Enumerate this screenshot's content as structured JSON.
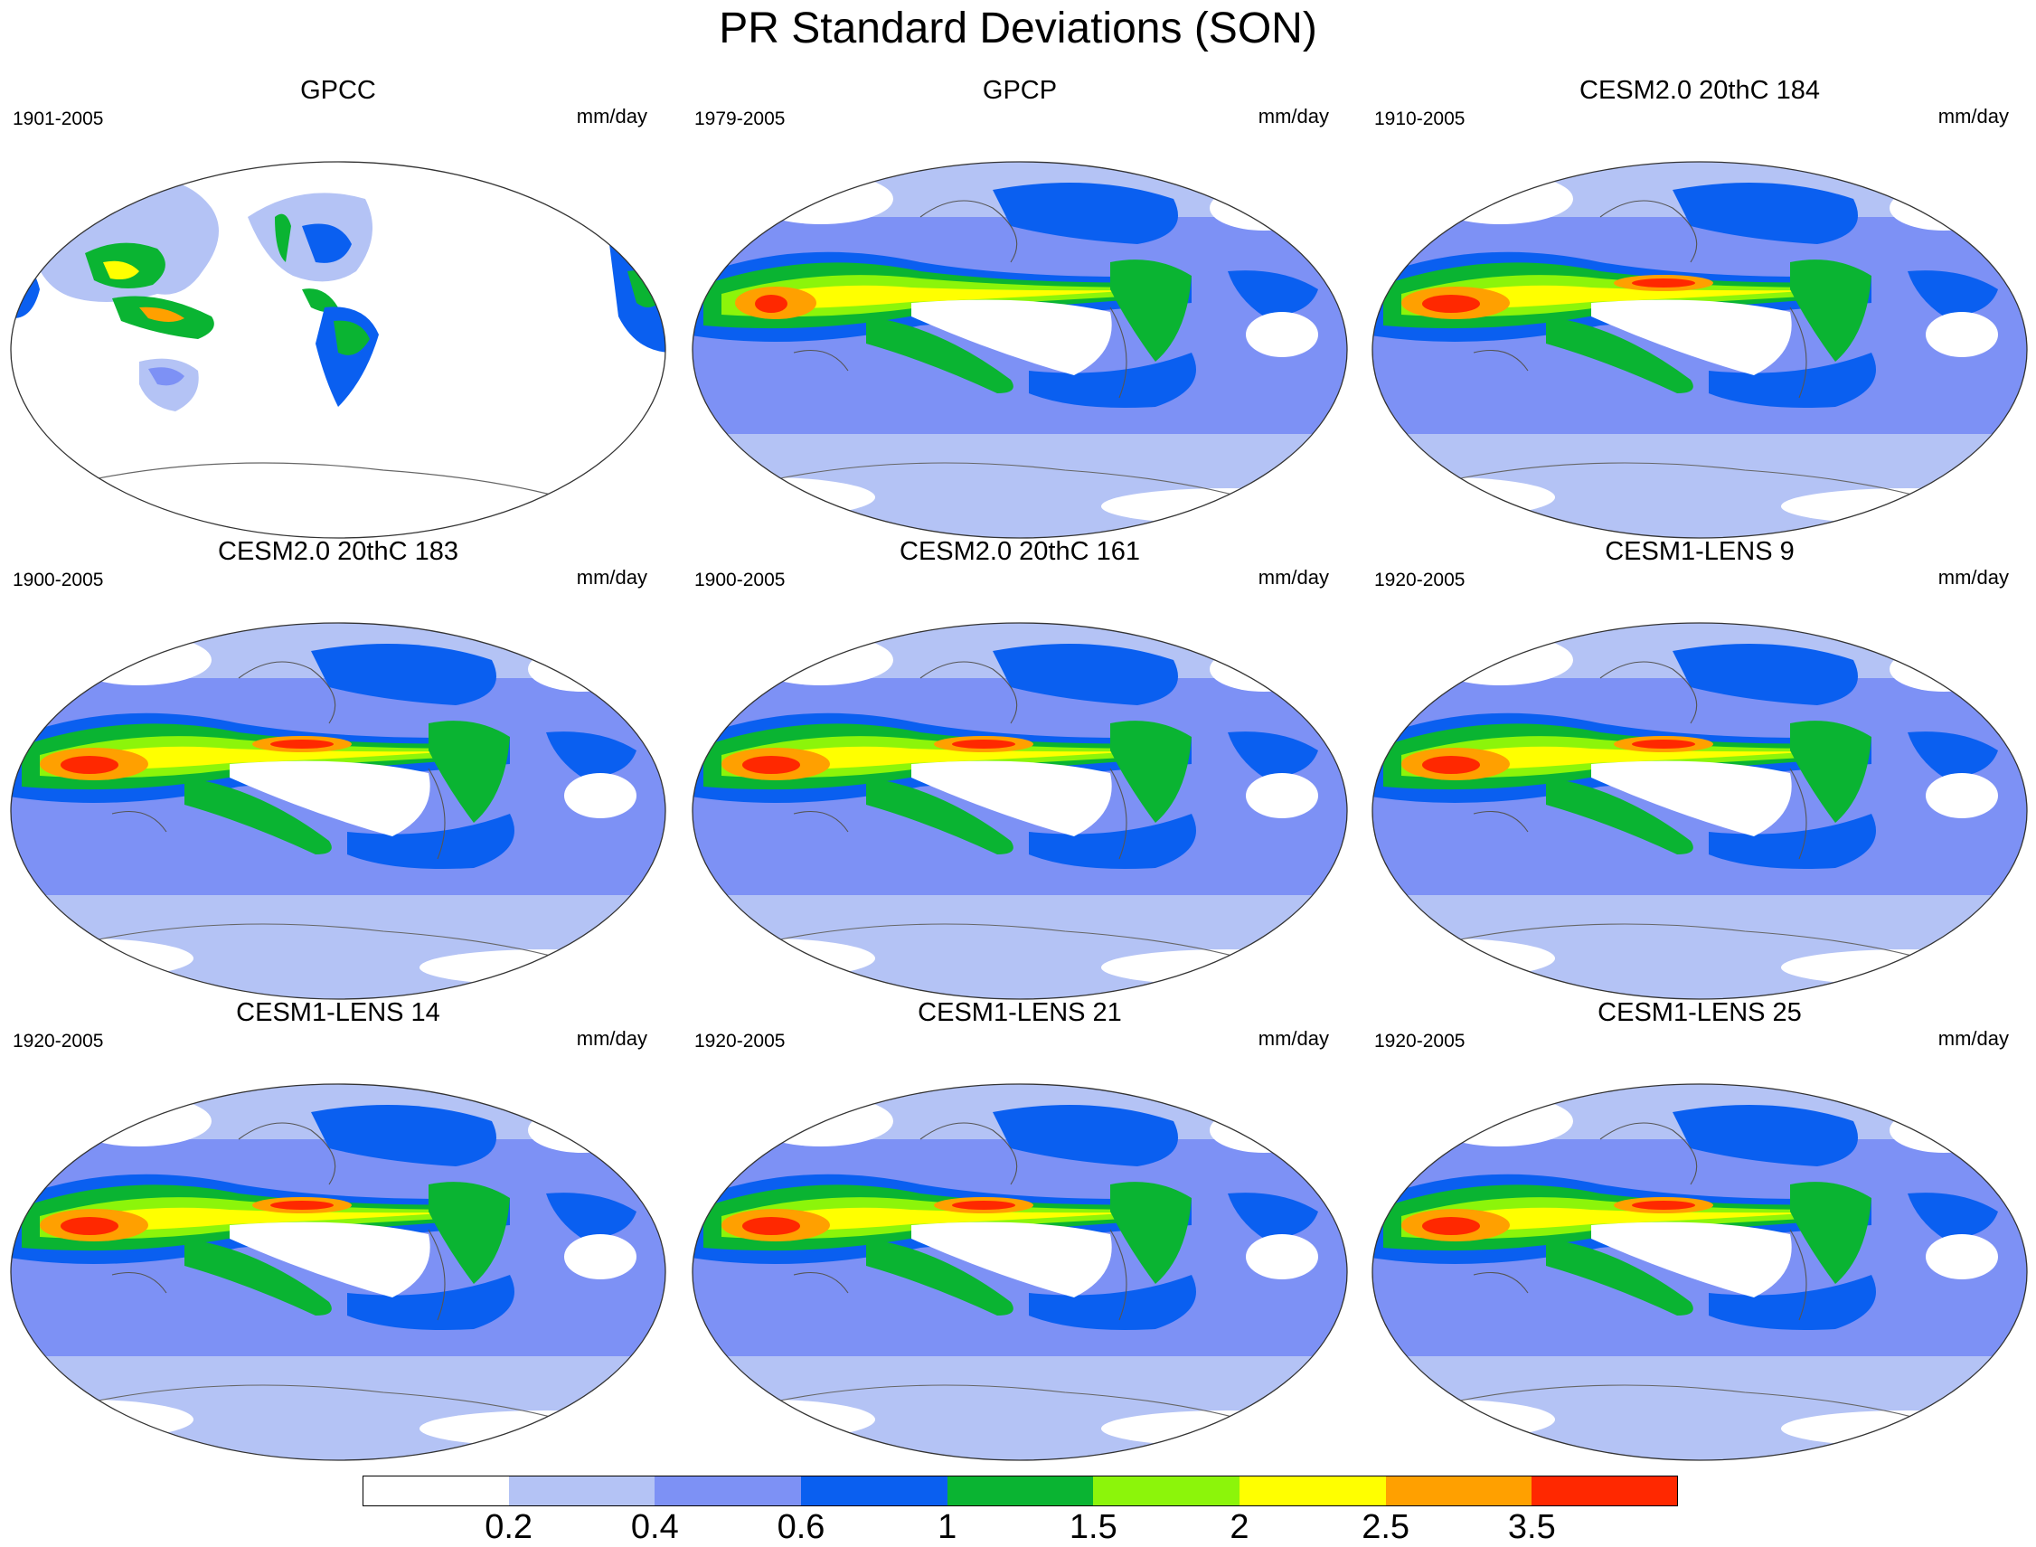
{
  "title": "PR Standard Deviations (SON)",
  "units": "mm/day",
  "panels": [
    {
      "title": "GPCC",
      "years": "1901-2005",
      "style": "obs-land"
    },
    {
      "title": "GPCP",
      "years": "1979-2005",
      "style": "obs"
    },
    {
      "title": "CESM2.0 20thC 184",
      "years": "1910-2005",
      "style": "model"
    },
    {
      "title": "CESM2.0 20thC 183",
      "years": "1900-2005",
      "style": "model"
    },
    {
      "title": "CESM2.0 20thC 161",
      "years": "1900-2005",
      "style": "model"
    },
    {
      "title": "CESM1-LENS 9",
      "years": "1920-2005",
      "style": "model"
    },
    {
      "title": "CESM1-LENS 14",
      "years": "1920-2005",
      "style": "model"
    },
    {
      "title": "CESM1-LENS 21",
      "years": "1920-2005",
      "style": "model"
    },
    {
      "title": "CESM1-LENS 25",
      "years": "1920-2005",
      "style": "model"
    }
  ],
  "colorbar": {
    "colors": [
      "#ffffff",
      "#b4c3f5",
      "#7d91f5",
      "#0a5ff0",
      "#0ab432",
      "#8cf50a",
      "#ffff00",
      "#ffa000",
      "#ff2800"
    ],
    "labels": [
      "0.2",
      "0.4",
      "0.6",
      "1",
      "1.5",
      "2",
      "2.5",
      "3.5"
    ]
  }
}
